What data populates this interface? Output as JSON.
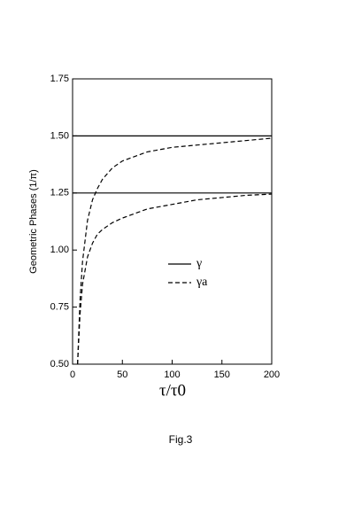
{
  "chart_data": {
    "type": "line",
    "xlabel": "τ/τ0",
    "ylabel": "Geometric Phases (1/π)",
    "caption": "Fig.3",
    "xlim": [
      0,
      200
    ],
    "ylim": [
      0.5,
      1.75
    ],
    "xticks": [
      0,
      50,
      100,
      150,
      200
    ],
    "yticks": [
      {
        "value": 0.5,
        "label": "0.50"
      },
      {
        "value": 0.75,
        "label": "0.75"
      },
      {
        "value": 1.0,
        "label": "1.00"
      },
      {
        "value": 1.25,
        "label": "1.25"
      },
      {
        "value": 1.5,
        "label": "1.50"
      },
      {
        "value": 1.75,
        "label": "1.75"
      }
    ],
    "series": [
      {
        "name": "γ",
        "color": "#000000",
        "style": "solid",
        "hlines": [
          1.5,
          1.25
        ]
      },
      {
        "name": "γa",
        "color": "#000000",
        "style": "dashed",
        "x": [
          5,
          7.5,
          10,
          15,
          20,
          25,
          30,
          40,
          50,
          75,
          100,
          125,
          150,
          175,
          200
        ],
        "values": [
          0.5,
          0.78,
          0.95,
          1.13,
          1.22,
          1.27,
          1.31,
          1.36,
          1.39,
          1.43,
          1.45,
          1.46,
          1.47,
          1.48,
          1.49
        ],
        "values2": [
          0.5,
          0.72,
          0.85,
          0.97,
          1.03,
          1.07,
          1.09,
          1.12,
          1.14,
          1.18,
          1.2,
          1.22,
          1.23,
          1.24,
          1.245
        ]
      }
    ]
  }
}
